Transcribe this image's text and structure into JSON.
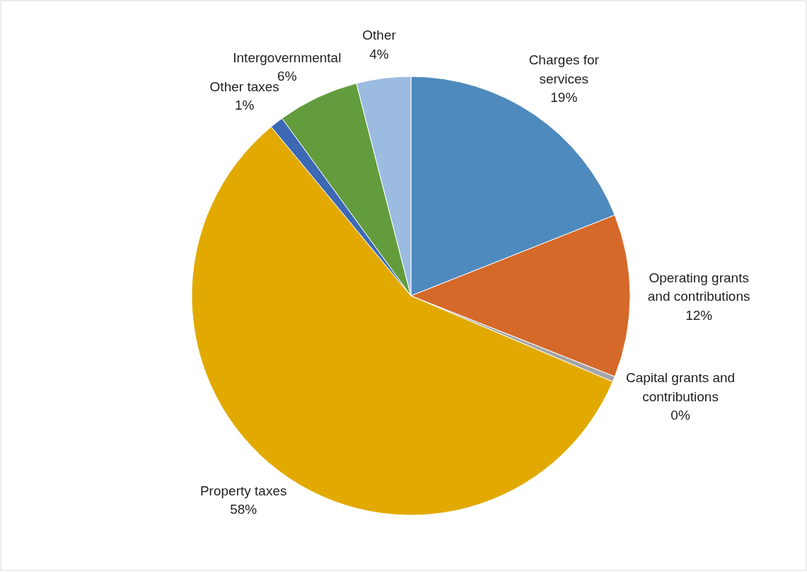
{
  "chart_data": {
    "type": "pie",
    "categories": [
      "Charges for services",
      "Operating grants and contributions",
      "Capital grants and contributions",
      "Property taxes",
      "Other taxes",
      "Intergovernmental",
      "Other"
    ],
    "values": [
      19,
      12,
      0.4,
      57.6,
      1,
      6,
      4
    ],
    "value_labels": [
      "19%",
      "12%",
      "0%",
      "58%",
      "1%",
      "6%",
      "4%"
    ],
    "colors": [
      "#4f8abe",
      "#d4692a",
      "#a5a5a5",
      "#e2aa00",
      "#3d68b4",
      "#629c3d",
      "#9bbbe0"
    ]
  }
}
